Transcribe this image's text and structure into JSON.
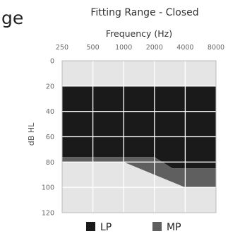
{
  "page": {
    "clipped_heading_fragment": "ge"
  },
  "chart_data": {
    "type": "area",
    "title": "Fitting Range - Closed",
    "xlabel": "Frequency (Hz)",
    "ylabel": "dB HL",
    "x_ticks": [
      "250",
      "500",
      "1000",
      "2000",
      "4000",
      "8000"
    ],
    "y_ticks": [
      "0",
      "20",
      "40",
      "60",
      "80",
      "100",
      "120"
    ],
    "ylim": [
      0,
      120
    ],
    "y_inverted": true,
    "x_scale": "log",
    "grid": true,
    "legend_position": "bottom",
    "background_color": "#e5e5e5",
    "series": [
      {
        "name": "LP",
        "color": "#1a1a1a",
        "upper": [
          [
            250,
            20
          ],
          [
            8000,
            20
          ]
        ],
        "lower": [
          [
            250,
            76
          ],
          [
            2000,
            76
          ],
          [
            3000,
            85
          ],
          [
            8000,
            85
          ]
        ]
      },
      {
        "name": "MP",
        "color": "#5f5f5f",
        "upper": [
          [
            250,
            76
          ],
          [
            2000,
            76
          ],
          [
            3000,
            85
          ],
          [
            8000,
            85
          ]
        ],
        "lower": [
          [
            250,
            80
          ],
          [
            1000,
            80
          ],
          [
            4000,
            100
          ],
          [
            8000,
            100
          ]
        ]
      }
    ]
  }
}
